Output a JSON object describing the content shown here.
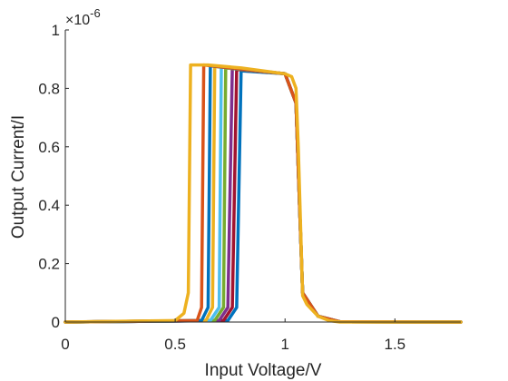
{
  "chart_data": {
    "type": "line",
    "title": "",
    "xlabel": "Input Voltage/V",
    "ylabel": "Output Current/I",
    "xlim": [
      0,
      1.8
    ],
    "ylim": [
      0,
      1
    ],
    "x_ticks": [
      "0",
      "0.5",
      "1",
      "1.5"
    ],
    "y_ticks": [
      "0",
      "0.2",
      "0.4",
      "0.6",
      "0.8",
      "1"
    ],
    "y_exponent_base": "×10",
    "y_exponent_power": "-6",
    "grid": false,
    "series": [
      {
        "color": "#0072BD",
        "x": [
          0,
          0.74,
          0.78,
          0.8,
          1.0,
          1.05,
          1.08,
          1.15,
          1.25,
          1.8
        ],
        "y": [
          0,
          0.005,
          0.05,
          0.86,
          0.85,
          0.75,
          0.1,
          0.02,
          0.001,
          0
        ]
      },
      {
        "color": "#A2142F",
        "x": [
          0,
          0.72,
          0.76,
          0.78,
          1.0,
          1.05,
          1.08,
          1.15,
          1.25,
          1.8
        ],
        "y": [
          0,
          0.005,
          0.05,
          0.865,
          0.85,
          0.75,
          0.1,
          0.02,
          0.001,
          0
        ]
      },
      {
        "color": "#7E2F8E",
        "x": [
          0,
          0.7,
          0.74,
          0.76,
          1.0,
          1.05,
          1.08,
          1.15,
          1.25,
          1.8
        ],
        "y": [
          0,
          0.005,
          0.05,
          0.868,
          0.85,
          0.75,
          0.1,
          0.02,
          0.001,
          0
        ]
      },
      {
        "color": "#77AC30",
        "x": [
          0,
          0.68,
          0.72,
          0.73,
          1.0,
          1.05,
          1.08,
          1.15,
          1.25,
          1.8
        ],
        "y": [
          0,
          0.005,
          0.05,
          0.87,
          0.85,
          0.75,
          0.1,
          0.02,
          0.001,
          0
        ]
      },
      {
        "color": "#4DBEEE",
        "x": [
          0,
          0.66,
          0.7,
          0.71,
          1.0,
          1.05,
          1.08,
          1.15,
          1.25,
          1.8
        ],
        "y": [
          0,
          0.005,
          0.05,
          0.873,
          0.85,
          0.75,
          0.1,
          0.02,
          0.001,
          0
        ]
      },
      {
        "color": "#EDB120",
        "x": [
          0,
          0.64,
          0.67,
          0.68,
          1.0,
          1.05,
          1.08,
          1.15,
          1.25,
          1.8
        ],
        "y": [
          0,
          0.005,
          0.05,
          0.875,
          0.85,
          0.75,
          0.1,
          0.02,
          0.001,
          0
        ]
      },
      {
        "color": "#0072BD",
        "x": [
          0,
          0.62,
          0.65,
          0.66,
          1.0,
          1.05,
          1.08,
          1.15,
          1.25,
          1.8
        ],
        "y": [
          0,
          0.005,
          0.05,
          0.877,
          0.85,
          0.75,
          0.1,
          0.02,
          0.001,
          0
        ]
      },
      {
        "color": "#D95319",
        "x": [
          0,
          0.6,
          0.62,
          0.63,
          1.0,
          1.05,
          1.08,
          1.15,
          1.25,
          1.8
        ],
        "y": [
          0,
          0.005,
          0.05,
          0.88,
          0.85,
          0.75,
          0.1,
          0.02,
          0.001,
          0
        ]
      },
      {
        "color": "#EDB120",
        "x": [
          0,
          0.5,
          0.54,
          0.56,
          0.57,
          0.65,
          0.8,
          1.0,
          1.03,
          1.05,
          1.06,
          1.08,
          1.1,
          1.15,
          1.2,
          1.25,
          1.8
        ],
        "y": [
          0,
          0.005,
          0.03,
          0.1,
          0.88,
          0.88,
          0.87,
          0.85,
          0.84,
          0.8,
          0.6,
          0.09,
          0.06,
          0.02,
          0.005,
          0,
          0
        ]
      }
    ]
  }
}
